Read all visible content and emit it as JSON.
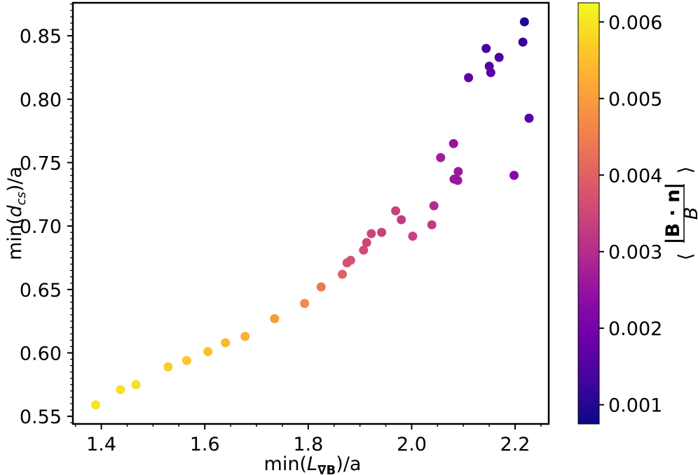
{
  "chart_data": {
    "type": "scatter",
    "title": "",
    "xlabel_main": "min(",
    "xlabel_var": "L",
    "xlabel_sub": "∇B",
    "xlabel_tail": ")/a",
    "ylabel_main": "min(",
    "ylabel_var": "d",
    "ylabel_sub": "cs",
    "ylabel_tail": ")/a",
    "xlim": [
      1.345,
      2.265
    ],
    "ylim": [
      0.544,
      0.876
    ],
    "xticks": [
      1.4,
      1.6,
      1.8,
      2.0,
      2.2
    ],
    "xtick_labels": [
      "1.4",
      "1.6",
      "1.8",
      "2.0",
      "2.2"
    ],
    "yticks": [
      0.55,
      0.6,
      0.65,
      0.7,
      0.75,
      0.8,
      0.85
    ],
    "ytick_labels": [
      "0.55",
      "0.60",
      "0.65",
      "0.70",
      "0.75",
      "0.80",
      "0.85"
    ],
    "colorbar": {
      "colormap": "plasma",
      "range": [
        0.00075,
        0.00625
      ],
      "ticks": [
        0.001,
        0.002,
        0.003,
        0.004,
        0.005,
        0.006
      ],
      "tick_labels": [
        "0.001",
        "0.002",
        "0.003",
        "0.004",
        "0.005",
        "0.006"
      ],
      "label_numerator": "|B · n|",
      "label_denominator": "B",
      "label_left": "⟨",
      "label_right": "⟩"
    },
    "series": [
      {
        "name": "points",
        "points": [
          {
            "x": 1.389,
            "y": 0.559,
            "c": 0.006
          },
          {
            "x": 1.437,
            "y": 0.571,
            "c": 0.0059
          },
          {
            "x": 1.467,
            "y": 0.575,
            "c": 0.0059
          },
          {
            "x": 1.529,
            "y": 0.589,
            "c": 0.0057
          },
          {
            "x": 1.565,
            "y": 0.594,
            "c": 0.0056
          },
          {
            "x": 1.606,
            "y": 0.601,
            "c": 0.0055
          },
          {
            "x": 1.64,
            "y": 0.608,
            "c": 0.0054
          },
          {
            "x": 1.678,
            "y": 0.613,
            "c": 0.0053
          },
          {
            "x": 1.735,
            "y": 0.627,
            "c": 0.005
          },
          {
            "x": 1.793,
            "y": 0.639,
            "c": 0.0047
          },
          {
            "x": 1.825,
            "y": 0.652,
            "c": 0.0044
          },
          {
            "x": 1.866,
            "y": 0.662,
            "c": 0.004
          },
          {
            "x": 1.875,
            "y": 0.671,
            "c": 0.0037
          },
          {
            "x": 1.882,
            "y": 0.673,
            "c": 0.0037
          },
          {
            "x": 1.907,
            "y": 0.681,
            "c": 0.0036
          },
          {
            "x": 1.913,
            "y": 0.687,
            "c": 0.0035
          },
          {
            "x": 1.922,
            "y": 0.694,
            "c": 0.0035
          },
          {
            "x": 1.942,
            "y": 0.695,
            "c": 0.0034
          },
          {
            "x": 1.969,
            "y": 0.712,
            "c": 0.0034
          },
          {
            "x": 1.98,
            "y": 0.705,
            "c": 0.0033
          },
          {
            "x": 2.002,
            "y": 0.692,
            "c": 0.0034
          },
          {
            "x": 2.039,
            "y": 0.701,
            "c": 0.0033
          },
          {
            "x": 2.043,
            "y": 0.716,
            "c": 0.003
          },
          {
            "x": 2.056,
            "y": 0.754,
            "c": 0.0027
          },
          {
            "x": 2.081,
            "y": 0.765,
            "c": 0.0025
          },
          {
            "x": 2.082,
            "y": 0.737,
            "c": 0.0026
          },
          {
            "x": 2.089,
            "y": 0.736,
            "c": 0.0026
          },
          {
            "x": 2.09,
            "y": 0.743,
            "c": 0.0026
          },
          {
            "x": 2.11,
            "y": 0.817,
            "c": 0.0017
          },
          {
            "x": 2.144,
            "y": 0.84,
            "c": 0.0014
          },
          {
            "x": 2.15,
            "y": 0.826,
            "c": 0.0016
          },
          {
            "x": 2.153,
            "y": 0.821,
            "c": 0.0016
          },
          {
            "x": 2.169,
            "y": 0.833,
            "c": 0.0015
          },
          {
            "x": 2.198,
            "y": 0.74,
            "c": 0.0023
          },
          {
            "x": 2.215,
            "y": 0.845,
            "c": 0.0012
          },
          {
            "x": 2.218,
            "y": 0.861,
            "c": 0.001
          },
          {
            "x": 2.227,
            "y": 0.785,
            "c": 0.0016
          }
        ]
      }
    ]
  }
}
